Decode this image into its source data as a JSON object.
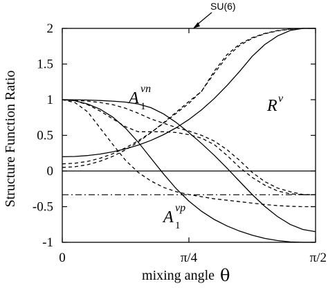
{
  "chart_data": {
    "type": "line",
    "xlabel": "mixing angle",
    "xlabel_symbol": "θ",
    "ylabel": "Structure Function Ratio",
    "xlim": [
      0,
      1.5708
    ],
    "ylim": [
      -1,
      2
    ],
    "xticks": [
      {
        "value": 0,
        "label": "0"
      },
      {
        "value": 0.7854,
        "label": "π/4"
      },
      {
        "value": 1.5708,
        "label": "π/2"
      }
    ],
    "yticks": [
      {
        "value": 2,
        "label": "2"
      },
      {
        "value": 1.5,
        "label": "1.5"
      },
      {
        "value": 1,
        "label": "1"
      },
      {
        "value": 0.5,
        "label": "0.5"
      },
      {
        "value": 0,
        "label": "0"
      },
      {
        "value": -0.5,
        "label": "-0.5"
      },
      {
        "value": -1,
        "label": "-1"
      }
    ],
    "grid": false,
    "annotations": {
      "A1n_base": "A",
      "A1n_sub": "1",
      "A1n_sup": "νn",
      "A1p_base": "A",
      "A1p_sub": "1",
      "A1p_sup": "νp",
      "R_base": "R",
      "R_sup": "ν",
      "su6": "SU(6)"
    },
    "horizontal_lines": [
      {
        "y": 0,
        "style": "solid"
      },
      {
        "y": -0.3333,
        "style": "dashdot"
      }
    ],
    "series": [
      {
        "style": "solid",
        "x": [
          0,
          0.0785,
          0.1571,
          0.2356,
          0.3142,
          0.3927,
          0.4712,
          0.5498,
          0.6283,
          0.7069,
          0.7854,
          0.8639,
          0.9425,
          1.021,
          1.0996,
          1.1781,
          1.2566,
          1.3352,
          1.4137,
          1.4923,
          1.5708
        ],
        "y": [
          0.2,
          0.2041,
          0.2166,
          0.238,
          0.2689,
          0.3102,
          0.3631,
          0.4289,
          0.5094,
          0.6065,
          0.7222,
          0.8586,
          1.0169,
          1.1971,
          1.3966,
          1.6086,
          1.7749,
          1.8946,
          1.9711,
          2,
          2
        ]
      },
      {
        "style": "dashed",
        "x": [
          0,
          0.0785,
          0.1571,
          0.2356,
          0.3142,
          0.3927,
          0.4712,
          0.5498,
          0.6283,
          0.7069,
          0.7854,
          0.8639,
          0.9425,
          1.021,
          1.0996,
          1.1781,
          1.2566,
          1.3352,
          1.4137,
          1.4923,
          1.5708
        ],
        "y": [
          0.05,
          0.0595,
          0.0884,
          0.1374,
          0.207,
          0.2975,
          0.4082,
          0.5365,
          0.678,
          0.8262,
          0.9743,
          1.1166,
          1.4,
          1.63,
          1.78,
          1.87,
          1.93,
          1.97,
          1.99,
          2,
          2
        ]
      },
      {
        "style": "dashed",
        "x": [
          0,
          0.0785,
          0.1571,
          0.2356,
          0.3142,
          0.3927,
          0.4712,
          0.5498,
          0.6283,
          0.7069,
          0.7854,
          0.8639,
          0.9425,
          1.021,
          1.0996,
          1.1781,
          1.2566,
          1.3352,
          1.4137,
          1.4923,
          1.5708
        ],
        "y": [
          0.1,
          0.109,
          0.135,
          0.18,
          0.243,
          0.325,
          0.424,
          0.54,
          0.67,
          0.81,
          0.95,
          1.12,
          1.37,
          1.6,
          1.76,
          1.86,
          1.925,
          1.965,
          1.988,
          2,
          2
        ]
      },
      {
        "style": "solid",
        "x": [
          0,
          0.0785,
          0.1571,
          0.2356,
          0.3142,
          0.3927,
          0.4712,
          0.5498,
          0.6283,
          0.7069,
          0.7854,
          0.8639,
          0.9425,
          1.021,
          1.0996,
          1.1781,
          1.2566,
          1.3352,
          1.4137,
          1.4923,
          1.5708
        ],
        "y": [
          1,
          0.999,
          0.9951,
          0.9885,
          0.9793,
          0.9657,
          0.9397,
          0.8886,
          0.8,
          0.6794,
          0.5391,
          0.3856,
          0.2202,
          0.0421,
          -0.1454,
          -0.3302,
          -0.4981,
          -0.6397,
          -0.7494,
          -0.82,
          -0.85
        ]
      },
      {
        "style": "solid",
        "x": [
          0,
          0.0785,
          0.1571,
          0.2356,
          0.3142,
          0.3927,
          0.4712,
          0.5498,
          0.6283,
          0.7069,
          0.7854,
          0.8639,
          0.9425,
          1.021,
          1.0996,
          1.1781,
          1.2566,
          1.3352,
          1.4137,
          1.4923,
          1.5708
        ],
        "y": [
          1,
          0.985,
          0.9397,
          0.866,
          0.7541,
          0.6,
          0.403,
          0.1797,
          -0.042,
          -0.2483,
          -0.4226,
          -0.5653,
          -0.6794,
          -0.7699,
          -0.8424,
          -0.9004,
          -0.9452,
          -0.9759,
          -0.9937,
          -1,
          -1
        ]
      },
      {
        "style": "dashed",
        "x": [
          0,
          0.0785,
          0.1571,
          0.2356,
          0.3142,
          0.3927,
          0.4712,
          0.5498,
          0.6283,
          0.7069,
          0.7854,
          0.8639,
          0.9425,
          1.021,
          1.0996,
          1.1781,
          1.2566,
          1.3352,
          1.4137,
          1.4923,
          1.5708
        ],
        "y": [
          1,
          0.985,
          0.93,
          0.84,
          0.73,
          0.62,
          0.55,
          0.55,
          0.55,
          0.54,
          0.51,
          0.46,
          0.37,
          0.22,
          0.05,
          -0.09,
          -0.2,
          -0.28,
          -0.32,
          -0.333,
          -0.333
        ]
      },
      {
        "style": "dashed",
        "x": [
          0,
          0.0785,
          0.1571,
          0.2356,
          0.3142,
          0.3927,
          0.4712,
          0.5498,
          0.6283,
          0.7069,
          0.7854,
          0.8639,
          0.9425,
          1.021,
          1.0996,
          1.1781,
          1.2566,
          1.3352,
          1.4137,
          1.4923,
          1.5708
        ],
        "y": [
          1,
          0.96,
          0.83,
          0.6,
          0.37,
          0.15,
          -0.02,
          -0.14,
          -0.23,
          -0.29,
          -0.33,
          -0.36,
          -0.39,
          -0.41,
          -0.43,
          -0.45,
          -0.47,
          -0.485,
          -0.495,
          -0.5,
          -0.5
        ]
      },
      {
        "style": "dashed",
        "x": [
          0,
          0.0785,
          0.1571,
          0.2356,
          0.3142,
          0.3927,
          0.4712,
          0.5498,
          0.6283,
          0.7069,
          0.7854,
          0.8639,
          0.9425,
          1.021,
          1.0996,
          1.1781,
          1.2566,
          1.3352,
          1.4137,
          1.4923,
          1.5708
        ],
        "y": [
          1,
          0.99,
          0.98,
          0.96,
          0.93,
          0.88,
          0.81,
          0.73,
          0.67,
          0.61,
          0.56,
          0.5,
          0.42,
          0.3,
          0.15,
          -0.02,
          -0.15,
          -0.24,
          -0.29,
          -0.33,
          -0.333
        ]
      }
    ]
  }
}
